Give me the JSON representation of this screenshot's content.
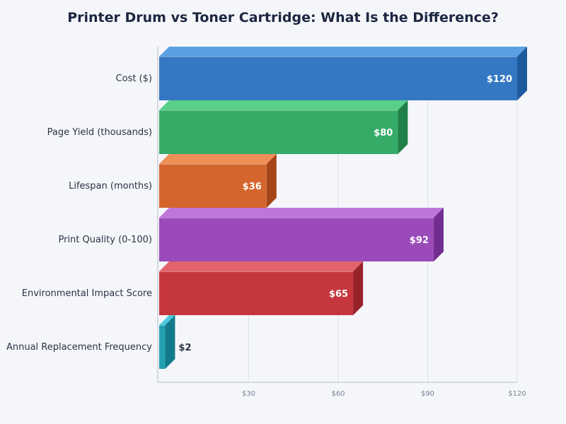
{
  "chart_data": {
    "type": "bar",
    "orientation": "horizontal",
    "style": "3d",
    "title": "Printer Drum vs Toner Cartridge: What Is the Difference?",
    "xlabel": "",
    "ylabel": "",
    "xlim": [
      0,
      120
    ],
    "x_ticks": [
      30,
      60,
      90,
      120
    ],
    "tick_prefix": "$",
    "value_prefix": "$",
    "grid": "vertical",
    "legend": "none",
    "categories": [
      "Cost ($)",
      "Page Yield (thousands)",
      "Lifespan (months)",
      "Print Quality (0-100)",
      "Environmental Impact Score",
      "Annual Replacement Frequency"
    ],
    "values": [
      120,
      80,
      36,
      92,
      65,
      2
    ],
    "colors": [
      {
        "front": "#3478c4",
        "top": "#5aa0e2",
        "side": "#1e5b9e"
      },
      {
        "front": "#36ab68",
        "top": "#59cf8a",
        "side": "#1f7f47"
      },
      {
        "front": "#d4652d",
        "top": "#ee8f58",
        "side": "#a54518"
      },
      {
        "front": "#9a4bb9",
        "top": "#bf76da",
        "side": "#712d90"
      },
      {
        "front": "#c6373d",
        "top": "#e3636a",
        "side": "#97222a"
      },
      {
        "front": "#24a0b3",
        "top": "#4ccbdc",
        "side": "#137a8a"
      }
    ]
  }
}
